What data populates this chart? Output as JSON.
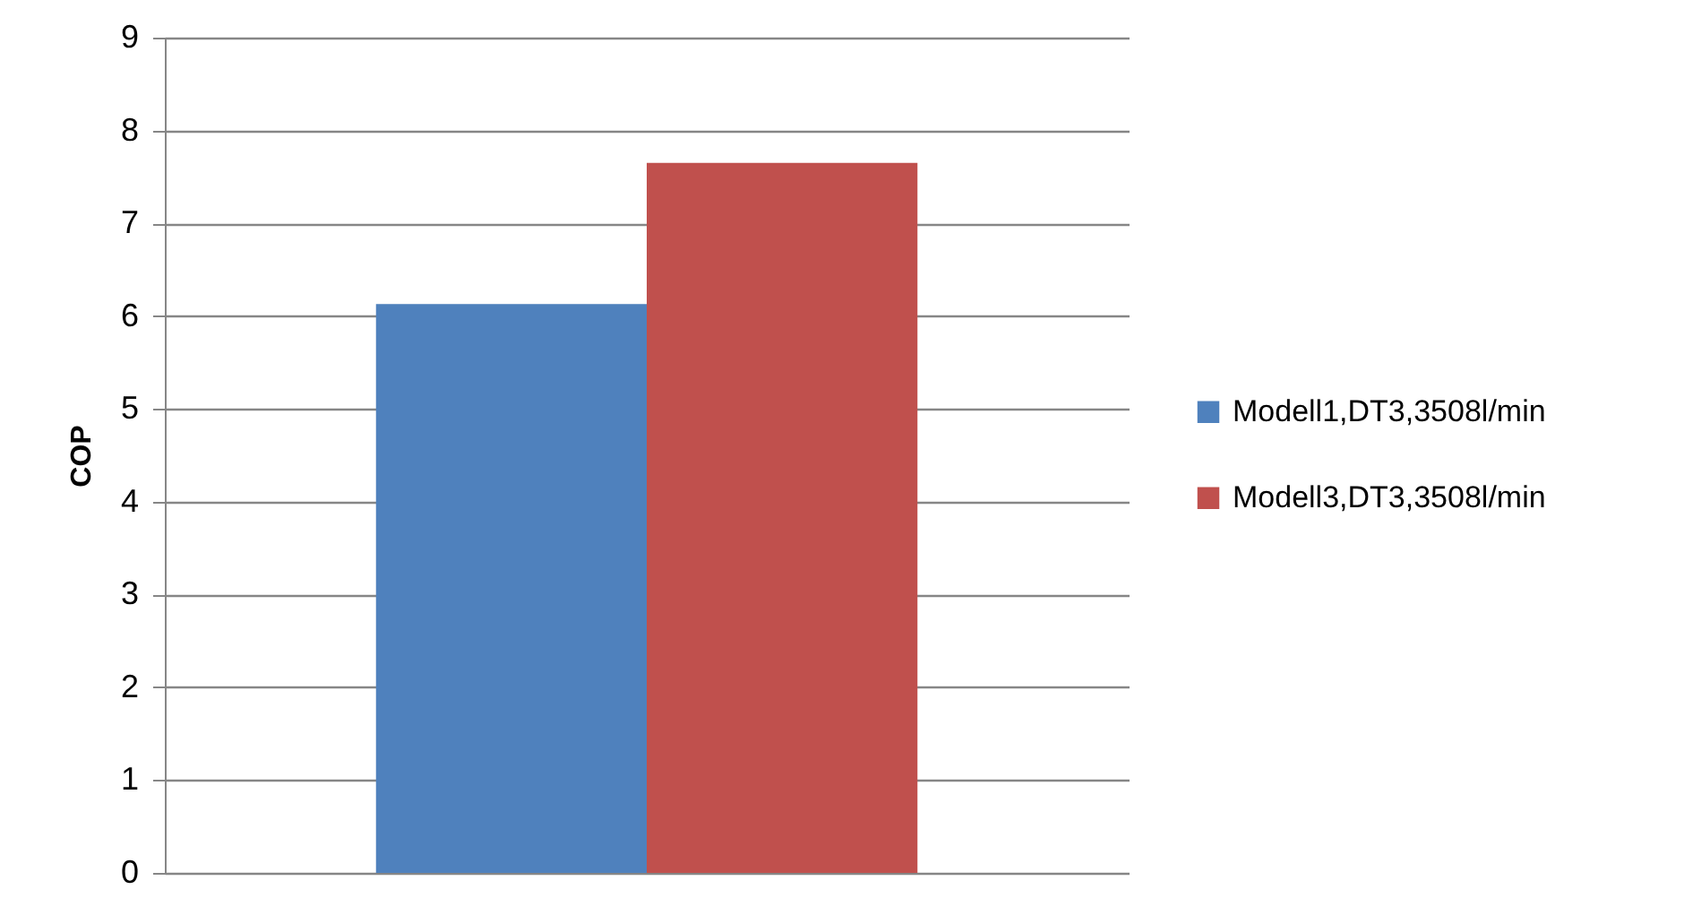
{
  "chart_data": {
    "type": "bar",
    "ylabel": "COP",
    "categories": [
      null
    ],
    "series": [
      {
        "name": "Modell1,DT3,3508l/min",
        "color": "#4f81bd",
        "values": [
          6.13
        ]
      },
      {
        "name": "Modell3,DT3,3508l/min",
        "color": "#c0504d",
        "values": [
          7.65
        ]
      }
    ],
    "ylim": [
      0,
      9
    ],
    "yticks": [
      0,
      1,
      2,
      3,
      4,
      5,
      6,
      7,
      8,
      9
    ],
    "grid": "y",
    "legend": "right"
  }
}
